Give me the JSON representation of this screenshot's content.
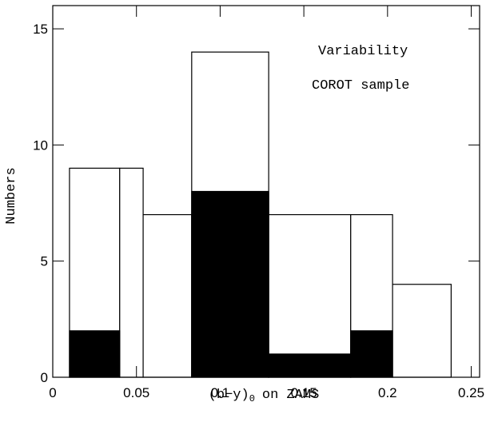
{
  "chart_data": {
    "type": "histogram",
    "bins": [
      0.01,
      0.04,
      0.054,
      0.083,
      0.129,
      0.178,
      0.203,
      0.238
    ],
    "series": [
      {
        "color": "#ffffff",
        "values": [
          9,
          9,
          7,
          14,
          7,
          7,
          4
        ]
      },
      {
        "color": "#000000",
        "values": [
          2,
          0,
          0,
          8,
          1,
          2,
          0
        ]
      }
    ],
    "xlabel": {
      "main": "(b−y)",
      "sub": "0",
      "rest": "on ZAMS"
    },
    "ylabel": "Numbers",
    "annotations": [
      "Variability",
      "COROT sample"
    ],
    "xlim": [
      0,
      0.255
    ],
    "ylim": [
      0,
      16
    ],
    "xticks": [
      0,
      0.05,
      0.1,
      0.15,
      0.2,
      0.25
    ],
    "yticks": [
      0,
      5,
      10,
      15
    ]
  }
}
